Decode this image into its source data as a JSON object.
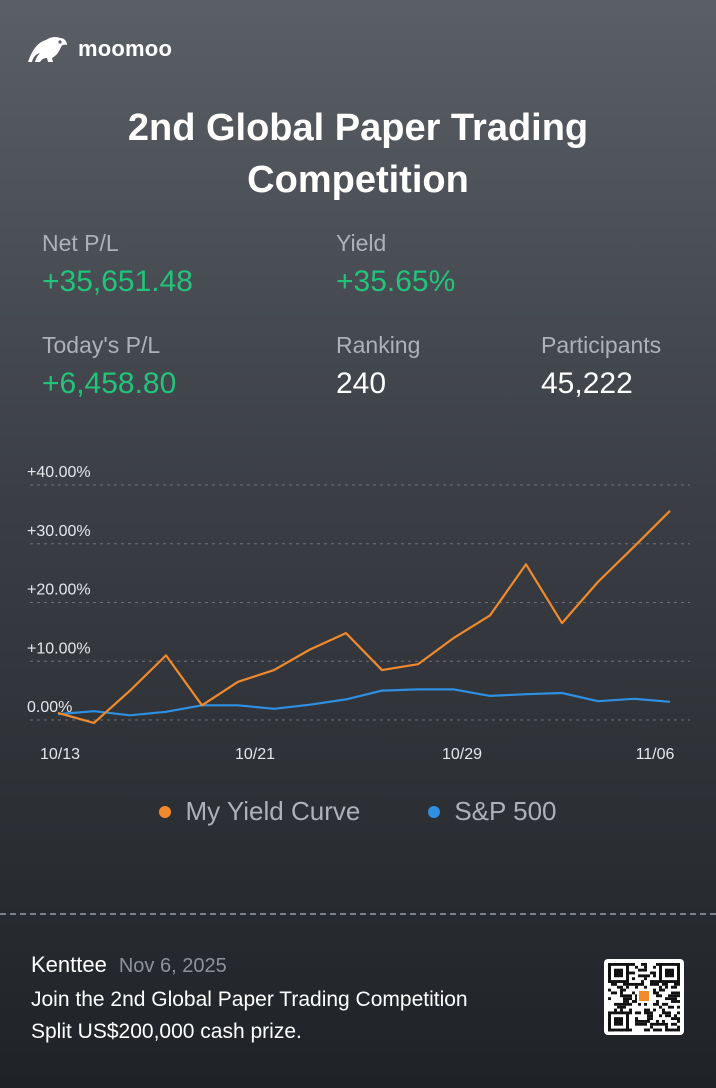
{
  "brand": {
    "name": "moomoo",
    "logo_icon": "moomoo-bull-icon"
  },
  "title": {
    "line1": "2nd Global Paper Trading",
    "line2": "Competition"
  },
  "stats": {
    "net_pl": {
      "label": "Net P/L",
      "value": "+35,651.48"
    },
    "yield": {
      "label": "Yield",
      "value": "+35.65%"
    },
    "todays_pl": {
      "label": "Today's P/L",
      "value": "+6,458.80"
    },
    "ranking": {
      "label": "Ranking",
      "value": "240"
    },
    "participants": {
      "label": "Participants",
      "value": "45,222"
    }
  },
  "colors": {
    "gain": "#22c37a",
    "my_curve": "#f08a2c",
    "sp500": "#2f8fe0"
  },
  "chart_data": {
    "type": "line",
    "y_ticks": [
      "+40.00%",
      "+30.00%",
      "+20.00%",
      "+10.00%",
      "0.00%"
    ],
    "y_tick_values": [
      40,
      30,
      20,
      10,
      0
    ],
    "x_tick_labels": [
      "10/13",
      "10/21",
      "10/29",
      "11/06"
    ],
    "ylim": [
      0,
      40
    ],
    "grid": true,
    "legend_position": "bottom-center",
    "series": [
      {
        "name": "My Yield Curve",
        "color": "#f08a2c",
        "values": [
          1.2,
          -0.5,
          5.0,
          11.0,
          2.5,
          6.5,
          8.5,
          12.0,
          14.8,
          8.5,
          9.5,
          14.0,
          17.8,
          26.5,
          16.5,
          23.5,
          29.5,
          35.6
        ]
      },
      {
        "name": "S&P 500",
        "color": "#2f8fe0",
        "values": [
          1.0,
          1.5,
          0.8,
          1.4,
          2.5,
          2.5,
          1.9,
          2.6,
          3.5,
          5.0,
          5.2,
          5.2,
          4.1,
          4.4,
          4.6,
          3.2,
          3.6,
          3.1
        ]
      }
    ]
  },
  "footer": {
    "user": "Kenttee",
    "date": "Nov 6, 2025",
    "line1": "Join the 2nd Global Paper Trading Competition",
    "line2": "Split US$200,000 cash prize.",
    "qr_icon": "qr-code-icon"
  }
}
